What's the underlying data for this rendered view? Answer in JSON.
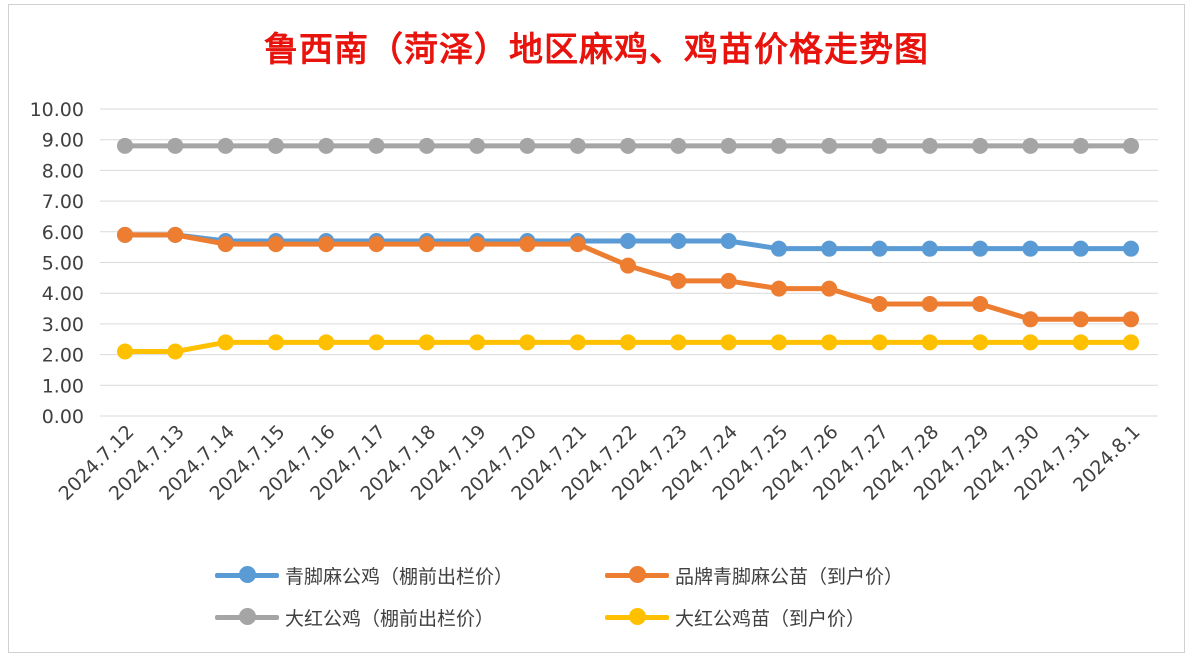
{
  "chart_data": {
    "type": "line",
    "title": "鲁西南（菏泽）地区麻鸡、鸡苗价格走势图",
    "categories": [
      "2024.7.12",
      "2024.7.13",
      "2024.7.14",
      "2024.7.15",
      "2024.7.16",
      "2024.7.17",
      "2024.7.18",
      "2024.7.19",
      "2024.7.20",
      "2024.7.21",
      "2024.7.22",
      "2024.7.23",
      "2024.7.24",
      "2024.7.25",
      "2024.7.26",
      "2024.7.27",
      "2024.7.28",
      "2024.7.29",
      "2024.7.30",
      "2024.7.31",
      "2024.8.1"
    ],
    "y_ticks": [
      "0.00",
      "1.00",
      "2.00",
      "3.00",
      "4.00",
      "5.00",
      "6.00",
      "7.00",
      "8.00",
      "9.00",
      "10.00"
    ],
    "ylim": [
      0,
      10
    ],
    "grid": true,
    "legend_position": "bottom",
    "series": [
      {
        "name": "青脚麻公鸡（棚前出栏价）",
        "color": "#5b9bd5",
        "values": [
          5.9,
          5.9,
          5.7,
          5.7,
          5.7,
          5.7,
          5.7,
          5.7,
          5.7,
          5.7,
          5.7,
          5.7,
          5.7,
          5.45,
          5.45,
          5.45,
          5.45,
          5.45,
          5.45,
          5.45,
          5.45
        ]
      },
      {
        "name": "品牌青脚麻公苗（到户价）",
        "color": "#ed7d31",
        "values": [
          5.9,
          5.9,
          5.6,
          5.6,
          5.6,
          5.6,
          5.6,
          5.6,
          5.6,
          5.6,
          4.9,
          4.4,
          4.4,
          4.15,
          4.15,
          3.65,
          3.65,
          3.65,
          3.15,
          3.15,
          3.15
        ]
      },
      {
        "name": "大红公鸡（棚前出栏价）",
        "color": "#a5a5a5",
        "values": [
          8.8,
          8.8,
          8.8,
          8.8,
          8.8,
          8.8,
          8.8,
          8.8,
          8.8,
          8.8,
          8.8,
          8.8,
          8.8,
          8.8,
          8.8,
          8.8,
          8.8,
          8.8,
          8.8,
          8.8,
          8.8
        ]
      },
      {
        "name": "大红公鸡苗（到户价）",
        "color": "#ffc000",
        "values": [
          2.1,
          2.1,
          2.4,
          2.4,
          2.4,
          2.4,
          2.4,
          2.4,
          2.4,
          2.4,
          2.4,
          2.4,
          2.4,
          2.4,
          2.4,
          2.4,
          2.4,
          2.4,
          2.4,
          2.4,
          2.4
        ]
      }
    ]
  }
}
